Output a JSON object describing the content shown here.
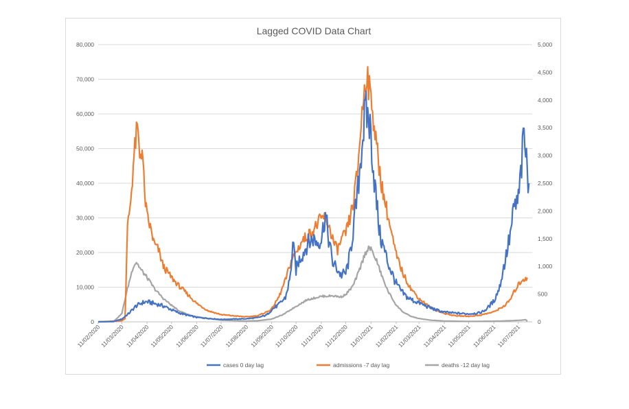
{
  "chart_data": {
    "type": "line",
    "title": "Lagged COVID Data Chart",
    "xlabel": "",
    "ylabel": "",
    "x_tick_labels": [
      "11/02/2020",
      "11/03/2020",
      "11/04/2020",
      "11/05/2020",
      "11/06/2020",
      "11/07/2020",
      "11/08/2020",
      "11/09/2020",
      "11/10/2020",
      "11/11/2020",
      "11/12/2020",
      "11/01/2021",
      "11/02/2021",
      "11/03/2021",
      "11/04/2021",
      "11/05/2021",
      "11/06/2021",
      "11/07/2021"
    ],
    "y_left": {
      "min": 0,
      "max": 80000,
      "ticks": [
        "0",
        "10,000",
        "20,000",
        "30,000",
        "40,000",
        "50,000",
        "60,000",
        "70,000",
        "80,000"
      ]
    },
    "y_right": {
      "min": 0,
      "max": 5000,
      "ticks": [
        "0",
        "500",
        "1,000",
        "1,500",
        "2,000",
        "2,500",
        "3,000",
        "3,500",
        "4,000",
        "4,500",
        "5,000"
      ]
    },
    "grid": true,
    "legend_position": "bottom",
    "series": [
      {
        "name": "cases 0 day lag",
        "color": "#4472c4",
        "axis": "left",
        "points": [
          [
            "2020-02-11",
            0
          ],
          [
            "2020-03-01",
            100
          ],
          [
            "2020-03-11",
            800
          ],
          [
            "2020-03-20",
            2500
          ],
          [
            "2020-03-28",
            4500
          ],
          [
            "2020-04-05",
            5500
          ],
          [
            "2020-04-11",
            5800
          ],
          [
            "2020-04-18",
            5400
          ],
          [
            "2020-04-25",
            5000
          ],
          [
            "2020-05-02",
            4500
          ],
          [
            "2020-05-11",
            3500
          ],
          [
            "2020-05-20",
            2600
          ],
          [
            "2020-06-01",
            1800
          ],
          [
            "2020-06-11",
            1300
          ],
          [
            "2020-06-25",
            1000
          ],
          [
            "2020-07-11",
            700
          ],
          [
            "2020-07-25",
            800
          ],
          [
            "2020-08-11",
            900
          ],
          [
            "2020-08-25",
            1200
          ],
          [
            "2020-09-05",
            2000
          ],
          [
            "2020-09-11",
            3500
          ],
          [
            "2020-09-20",
            5000
          ],
          [
            "2020-09-28",
            7000
          ],
          [
            "2020-10-04",
            13000
          ],
          [
            "2020-10-07",
            22500
          ],
          [
            "2020-10-11",
            15000
          ],
          [
            "2020-10-15",
            18000
          ],
          [
            "2020-10-20",
            20000
          ],
          [
            "2020-10-25",
            22500
          ],
          [
            "2020-11-01",
            24000
          ],
          [
            "2020-11-06",
            23000
          ],
          [
            "2020-11-11",
            24000
          ],
          [
            "2020-11-16",
            31000
          ],
          [
            "2020-11-20",
            24000
          ],
          [
            "2020-11-25",
            17000
          ],
          [
            "2020-11-30",
            15500
          ],
          [
            "2020-12-05",
            13500
          ],
          [
            "2020-12-11",
            14000
          ],
          [
            "2020-12-16",
            19000
          ],
          [
            "2020-12-21",
            28000
          ],
          [
            "2020-12-26",
            38000
          ],
          [
            "2020-12-31",
            52000
          ],
          [
            "2021-01-04",
            60000
          ],
          [
            "2021-01-08",
            59000
          ],
          [
            "2021-01-11",
            54000
          ],
          [
            "2021-01-14",
            44000
          ],
          [
            "2021-01-18",
            34000
          ],
          [
            "2021-01-22",
            25000
          ],
          [
            "2021-01-27",
            21000
          ],
          [
            "2021-02-01",
            17000
          ],
          [
            "2021-02-05",
            14500
          ],
          [
            "2021-02-11",
            11000
          ],
          [
            "2021-02-18",
            8500
          ],
          [
            "2021-02-25",
            7000
          ],
          [
            "2021-03-05",
            6000
          ],
          [
            "2021-03-11",
            5500
          ],
          [
            "2021-03-20",
            4500
          ],
          [
            "2021-03-31",
            3500
          ],
          [
            "2021-04-11",
            2800
          ],
          [
            "2021-04-25",
            2500
          ],
          [
            "2021-05-11",
            2300
          ],
          [
            "2021-05-25",
            2600
          ],
          [
            "2021-06-01",
            3500
          ],
          [
            "2021-06-11",
            6000
          ],
          [
            "2021-06-18",
            10000
          ],
          [
            "2021-06-25",
            18000
          ],
          [
            "2021-07-01",
            25000
          ],
          [
            "2021-07-06",
            33000
          ],
          [
            "2021-07-11",
            35000
          ],
          [
            "2021-07-15",
            45000
          ],
          [
            "2021-07-18",
            54500
          ],
          [
            "2021-07-21",
            46000
          ],
          [
            "2021-07-24",
            40000
          ]
        ]
      },
      {
        "name": "admissions -7 day lag",
        "color": "#ed7d31",
        "axis": "right",
        "points": [
          [
            "2020-02-11",
            0
          ],
          [
            "2020-03-11",
            20
          ],
          [
            "2020-03-15",
            60
          ],
          [
            "2020-03-18",
            1700
          ],
          [
            "2020-03-22",
            2200
          ],
          [
            "2020-03-26",
            3000
          ],
          [
            "2020-03-30",
            3500
          ],
          [
            "2020-04-02",
            3000
          ],
          [
            "2020-04-05",
            3150
          ],
          [
            "2020-04-08",
            2300
          ],
          [
            "2020-04-11",
            1900
          ],
          [
            "2020-04-15",
            1700
          ],
          [
            "2020-04-20",
            1400
          ],
          [
            "2020-04-25",
            1300
          ],
          [
            "2020-05-01",
            1000
          ],
          [
            "2020-05-11",
            800
          ],
          [
            "2020-05-20",
            650
          ],
          [
            "2020-06-01",
            480
          ],
          [
            "2020-06-11",
            330
          ],
          [
            "2020-06-25",
            200
          ],
          [
            "2020-07-11",
            130
          ],
          [
            "2020-07-25",
            110
          ],
          [
            "2020-08-11",
            90
          ],
          [
            "2020-08-25",
            110
          ],
          [
            "2020-09-05",
            180
          ],
          [
            "2020-09-11",
            230
          ],
          [
            "2020-09-20",
            450
          ],
          [
            "2020-09-28",
            750
          ],
          [
            "2020-10-05",
            1100
          ],
          [
            "2020-10-11",
            1250
          ],
          [
            "2020-10-18",
            1450
          ],
          [
            "2020-10-25",
            1550
          ],
          [
            "2020-11-01",
            1650
          ],
          [
            "2020-11-08",
            1800
          ],
          [
            "2020-11-14",
            1900
          ],
          [
            "2020-11-20",
            1750
          ],
          [
            "2020-11-27",
            1400
          ],
          [
            "2020-12-01",
            1300
          ],
          [
            "2020-12-05",
            1450
          ],
          [
            "2020-12-11",
            1600
          ],
          [
            "2020-12-16",
            1850
          ],
          [
            "2020-12-21",
            2200
          ],
          [
            "2020-12-26",
            2800
          ],
          [
            "2020-12-30",
            3600
          ],
          [
            "2021-01-03",
            4200
          ],
          [
            "2021-01-06",
            4550
          ],
          [
            "2021-01-09",
            4150
          ],
          [
            "2021-01-12",
            4000
          ],
          [
            "2021-01-16",
            3400
          ],
          [
            "2021-01-20",
            2900
          ],
          [
            "2021-01-25",
            2400
          ],
          [
            "2021-02-01",
            1900
          ],
          [
            "2021-02-05",
            1600
          ],
          [
            "2021-02-11",
            1200
          ],
          [
            "2021-02-20",
            850
          ],
          [
            "2021-03-01",
            600
          ],
          [
            "2021-03-11",
            420
          ],
          [
            "2021-03-25",
            260
          ],
          [
            "2021-04-11",
            150
          ],
          [
            "2021-04-25",
            110
          ],
          [
            "2021-05-11",
            100
          ],
          [
            "2021-05-25",
            120
          ],
          [
            "2021-06-11",
            180
          ],
          [
            "2021-06-25",
            300
          ],
          [
            "2021-07-01",
            400
          ],
          [
            "2021-07-08",
            600
          ],
          [
            "2021-07-15",
            750
          ],
          [
            "2021-07-22",
            800
          ]
        ]
      },
      {
        "name": "deaths -12 day lag",
        "color": "#a5a5a5",
        "axis": "right",
        "points": [
          [
            "2020-02-11",
            0
          ],
          [
            "2020-03-01",
            5
          ],
          [
            "2020-03-11",
            150
          ],
          [
            "2020-03-18",
            600
          ],
          [
            "2020-03-25",
            1000
          ],
          [
            "2020-03-29",
            1080
          ],
          [
            "2020-04-03",
            950
          ],
          [
            "2020-04-11",
            800
          ],
          [
            "2020-04-20",
            600
          ],
          [
            "2020-05-01",
            420
          ],
          [
            "2020-05-11",
            300
          ],
          [
            "2020-05-20",
            200
          ],
          [
            "2020-06-01",
            130
          ],
          [
            "2020-06-11",
            90
          ],
          [
            "2020-06-25",
            60
          ],
          [
            "2020-07-11",
            30
          ],
          [
            "2020-08-11",
            15
          ],
          [
            "2020-08-25",
            20
          ],
          [
            "2020-09-11",
            50
          ],
          [
            "2020-09-25",
            130
          ],
          [
            "2020-10-11",
            280
          ],
          [
            "2020-10-25",
            400
          ],
          [
            "2020-11-11",
            460
          ],
          [
            "2020-11-25",
            470
          ],
          [
            "2020-12-05",
            450
          ],
          [
            "2020-12-11",
            490
          ],
          [
            "2020-12-20",
            650
          ],
          [
            "2020-12-27",
            900
          ],
          [
            "2021-01-03",
            1200
          ],
          [
            "2021-01-08",
            1350
          ],
          [
            "2021-01-12",
            1280
          ],
          [
            "2021-01-18",
            1100
          ],
          [
            "2021-01-25",
            800
          ],
          [
            "2021-02-01",
            550
          ],
          [
            "2021-02-11",
            300
          ],
          [
            "2021-02-20",
            170
          ],
          [
            "2021-03-01",
            100
          ],
          [
            "2021-03-11",
            60
          ],
          [
            "2021-03-25",
            30
          ],
          [
            "2021-04-11",
            15
          ],
          [
            "2021-05-11",
            8
          ],
          [
            "2021-06-11",
            12
          ],
          [
            "2021-07-01",
            20
          ],
          [
            "2021-07-15",
            30
          ],
          [
            "2021-07-20",
            40
          ],
          [
            "2021-07-22",
            10
          ]
        ]
      }
    ]
  }
}
